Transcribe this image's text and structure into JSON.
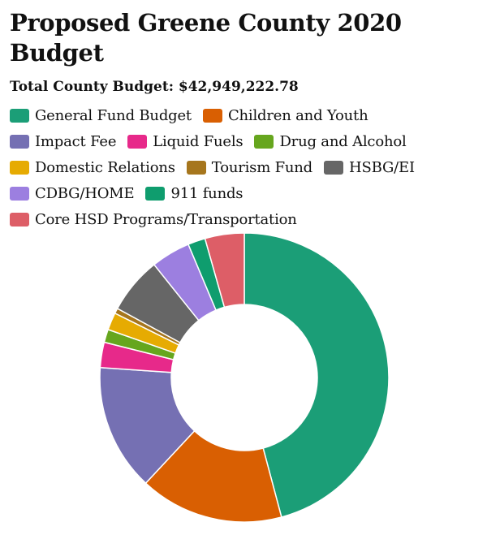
{
  "chart_data": {
    "type": "pie",
    "title": "Proposed Greene County 2020 Budget",
    "subtitle": "Total County Budget: $42,949,222.78",
    "donut": true,
    "legend_position": "top",
    "slices": [
      {
        "label": "General Fund Budget",
        "value": 47.0,
        "color": "#1b9e77"
      },
      {
        "label": "Children and Youth",
        "value": 16.5,
        "color": "#d95f02"
      },
      {
        "label": "Impact Fee",
        "value": 14.5,
        "color": "#7570b3"
      },
      {
        "label": "Liquid Fuels",
        "value": 2.9,
        "color": "#e7298a"
      },
      {
        "label": "Drug and Alcohol",
        "value": 1.5,
        "color": "#66a61e"
      },
      {
        "label": "Domestic Relations",
        "value": 2.0,
        "color": "#e6ab02"
      },
      {
        "label": "Tourism Fund",
        "value": 0.6,
        "color": "#a6761d"
      },
      {
        "label": "HSBG/EI",
        "value": 6.5,
        "color": "#666666"
      },
      {
        "label": "CDBG/HOME",
        "value": 4.5,
        "color": "#9c7fe0"
      },
      {
        "label": "911 funds",
        "value": 2.0,
        "color": "#0f9d6e"
      },
      {
        "label": "Core HSD Programs/Transportation",
        "value": 4.5,
        "color": "#dd5e67"
      }
    ]
  }
}
